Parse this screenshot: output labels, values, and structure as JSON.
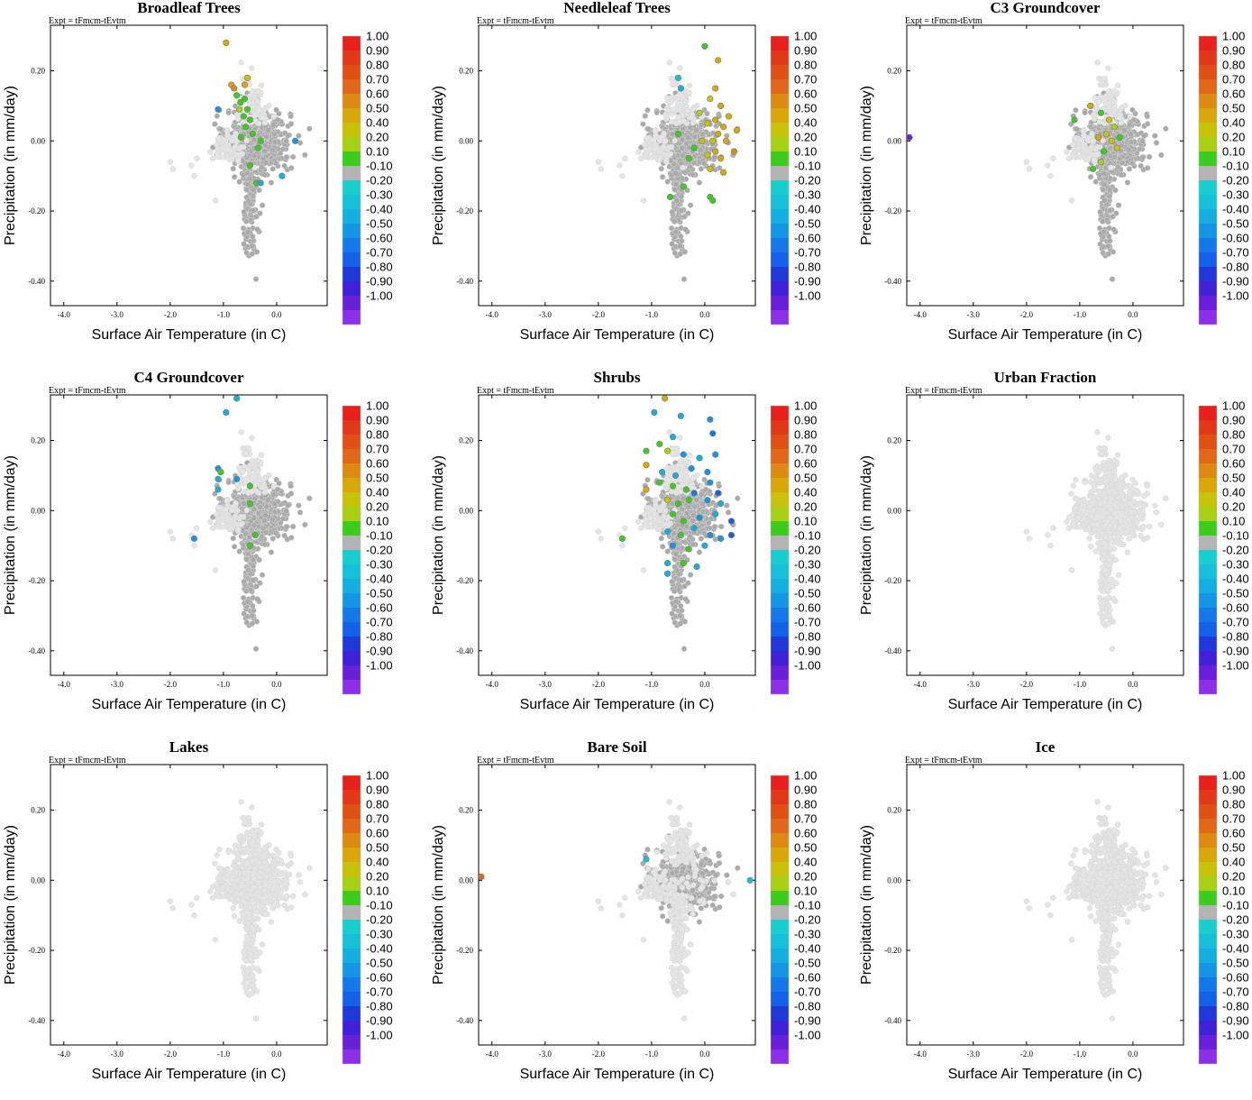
{
  "expt_label": "Expt = tFmcm-tEvtm",
  "xlabel": "Surface Air Temperature (in C)",
  "ylabel": "Precipitation (in mm/day)",
  "colors": {
    "background_points": "#e4e4e4",
    "neutral_points": "#aaaaaa",
    "point_edge": "#d8d8d8"
  },
  "colorbar": {
    "labels": [
      "1.00",
      "0.90",
      "0.80",
      "0.70",
      "0.60",
      "0.50",
      "0.40",
      "0.20",
      "0.10",
      "-0.10",
      "-0.20",
      "-0.30",
      "-0.40",
      "-0.50",
      "-0.60",
      "-0.70",
      "-0.80",
      "-0.90",
      "-1.00"
    ],
    "colors": [
      "#e8201c",
      "#e03818",
      "#e05015",
      "#e06818",
      "#dc8a12",
      "#d8a80a",
      "#c8c20a",
      "#a8d014",
      "#3ccc1e",
      "#b4b4b4",
      "#18cece",
      "#16c0d8",
      "#14aee0",
      "#1496e4",
      "#1478e8",
      "#1460e8",
      "#2038d8",
      "#4020d8",
      "#6820d8",
      "#8c30e8"
    ]
  },
  "chart_data": [
    {
      "type": "scatter",
      "title": "Broadleaf Trees",
      "xlabel": "Surface Air Temperature (in C)",
      "ylabel": "Precipitation (in mm/day)",
      "xlim": [
        -4.25,
        0.95
      ],
      "ylim": [
        -0.47,
        0.33
      ],
      "xticks": [
        "-4.0",
        "-3.0",
        "-2.0",
        "-1.0",
        "0.0"
      ],
      "yticks": [
        "0.20",
        "0.00",
        "-0.20",
        "-0.40"
      ],
      "colorbar_range": [
        -1,
        1
      ],
      "neutral_cloud_extent": "dense",
      "highlight_points": [
        {
          "x": -0.95,
          "y": 0.28,
          "v": 0.5
        },
        {
          "x": -0.85,
          "y": 0.16,
          "v": 0.45
        },
        {
          "x": -0.8,
          "y": 0.15,
          "v": 0.6
        },
        {
          "x": -0.55,
          "y": 0.18,
          "v": 0.3
        },
        {
          "x": -0.6,
          "y": 0.16,
          "v": 0.4
        },
        {
          "x": -0.75,
          "y": 0.13,
          "v": 0.2
        },
        {
          "x": -0.68,
          "y": 0.11,
          "v": 0.2
        },
        {
          "x": -0.6,
          "y": 0.12,
          "v": 0.15
        },
        {
          "x": -0.55,
          "y": 0.09,
          "v": 0.2
        },
        {
          "x": -0.7,
          "y": 0.09,
          "v": 0.25
        },
        {
          "x": -0.5,
          "y": 0.06,
          "v": 0.12
        },
        {
          "x": -0.62,
          "y": 0.07,
          "v": 0.15
        },
        {
          "x": -0.58,
          "y": 0.04,
          "v": 0.2
        },
        {
          "x": -0.67,
          "y": 0.01,
          "v": 0.15
        },
        {
          "x": -0.45,
          "y": 0.02,
          "v": 0.2
        },
        {
          "x": -0.35,
          "y": -0.02,
          "v": 0.2
        },
        {
          "x": -0.3,
          "y": 0.0,
          "v": 0.12
        },
        {
          "x": -0.5,
          "y": -0.07,
          "v": 0.15
        },
        {
          "x": -0.38,
          "y": -0.12,
          "v": 0.15
        },
        {
          "x": -0.3,
          "y": -0.12,
          "v": -0.25
        },
        {
          "x": 0.1,
          "y": -0.1,
          "v": -0.25
        },
        {
          "x": -1.1,
          "y": 0.09,
          "v": -0.35
        },
        {
          "x": 0.35,
          "y": 0.0,
          "v": -0.3
        }
      ]
    },
    {
      "type": "scatter",
      "title": "Needleleaf Trees",
      "xlabel": "Surface Air Temperature (in C)",
      "ylabel": "Precipitation (in mm/day)",
      "xlim": [
        -4.25,
        0.95
      ],
      "ylim": [
        -0.47,
        0.33
      ],
      "xticks": [
        "-4.0",
        "-3.0",
        "-2.0",
        "-1.0",
        "0.0"
      ],
      "yticks": [
        "0.20",
        "0.00",
        "-0.20",
        "-0.40"
      ],
      "colorbar_range": [
        -1,
        1
      ],
      "neutral_cloud_extent": "dense",
      "highlight_points": [
        {
          "x": 0.0,
          "y": 0.27,
          "v": 0.2
        },
        {
          "x": 0.25,
          "y": 0.23,
          "v": 0.45
        },
        {
          "x": 0.2,
          "y": 0.15,
          "v": 0.45
        },
        {
          "x": 0.1,
          "y": 0.12,
          "v": 0.35
        },
        {
          "x": 0.3,
          "y": 0.1,
          "v": 0.4
        },
        {
          "x": -0.1,
          "y": 0.08,
          "v": 0.25
        },
        {
          "x": 0.05,
          "y": 0.05,
          "v": 0.3
        },
        {
          "x": 0.2,
          "y": 0.06,
          "v": 0.45
        },
        {
          "x": 0.35,
          "y": 0.04,
          "v": 0.4
        },
        {
          "x": 0.45,
          "y": 0.07,
          "v": 0.5
        },
        {
          "x": -0.05,
          "y": 0.0,
          "v": 0.3
        },
        {
          "x": 0.15,
          "y": 0.0,
          "v": 0.35
        },
        {
          "x": 0.25,
          "y": 0.02,
          "v": 0.4
        },
        {
          "x": 0.4,
          "y": 0.0,
          "v": 0.45
        },
        {
          "x": -0.2,
          "y": -0.02,
          "v": 0.2
        },
        {
          "x": 0.05,
          "y": -0.04,
          "v": 0.35
        },
        {
          "x": 0.3,
          "y": -0.05,
          "v": 0.4
        },
        {
          "x": 0.55,
          "y": -0.03,
          "v": 0.55
        },
        {
          "x": -0.3,
          "y": -0.05,
          "v": 0.2
        },
        {
          "x": 0.1,
          "y": -0.08,
          "v": 0.3
        },
        {
          "x": 0.35,
          "y": -0.09,
          "v": 0.4
        },
        {
          "x": -0.4,
          "y": -0.13,
          "v": 0.2
        },
        {
          "x": -0.65,
          "y": -0.16,
          "v": 0.15
        },
        {
          "x": 0.1,
          "y": -0.16,
          "v": 0.2
        },
        {
          "x": 0.15,
          "y": -0.17,
          "v": 0.2
        },
        {
          "x": -0.5,
          "y": 0.18,
          "v": -0.2
        },
        {
          "x": -0.45,
          "y": 0.15,
          "v": -0.25
        },
        {
          "x": -0.5,
          "y": 0.02,
          "v": 0.15
        },
        {
          "x": 0.6,
          "y": 0.03,
          "v": 0.5
        },
        {
          "x": 0.2,
          "y": -0.03,
          "v": 0.45
        }
      ]
    },
    {
      "type": "scatter",
      "title": "C3 Groundcover",
      "xlabel": "Surface Air Temperature (in C)",
      "ylabel": "Precipitation (in mm/day)",
      "xlim": [
        -4.25,
        0.95
      ],
      "ylim": [
        -0.47,
        0.33
      ],
      "xticks": [
        "-4.0",
        "-3.0",
        "-2.0",
        "-1.0",
        "0.0"
      ],
      "yticks": [
        "0.20",
        "0.00",
        "-0.20",
        "-0.40"
      ],
      "colorbar_range": [
        -1,
        1
      ],
      "neutral_cloud_extent": "dense",
      "highlight_points": [
        {
          "x": -4.2,
          "y": 0.01,
          "v": -0.9
        },
        {
          "x": -0.8,
          "y": 0.1,
          "v": 0.4
        },
        {
          "x": -1.1,
          "y": 0.06,
          "v": 0.2
        },
        {
          "x": -0.6,
          "y": 0.08,
          "v": 0.2
        },
        {
          "x": -0.45,
          "y": 0.06,
          "v": 0.3
        },
        {
          "x": -0.35,
          "y": 0.04,
          "v": 0.25
        },
        {
          "x": -0.5,
          "y": 0.02,
          "v": 0.35
        },
        {
          "x": -0.65,
          "y": 0.01,
          "v": 0.4
        },
        {
          "x": -0.4,
          "y": 0.0,
          "v": 0.3
        },
        {
          "x": -0.25,
          "y": 0.01,
          "v": 0.2
        },
        {
          "x": -0.55,
          "y": -0.03,
          "v": 0.2
        },
        {
          "x": -0.6,
          "y": -0.06,
          "v": 0.25
        },
        {
          "x": -0.75,
          "y": -0.08,
          "v": 0.15
        },
        {
          "x": -0.3,
          "y": -0.02,
          "v": 0.3
        }
      ]
    },
    {
      "type": "scatter",
      "title": "C4 Groundcover",
      "xlabel": "Surface Air Temperature (in C)",
      "ylabel": "Precipitation (in mm/day)",
      "xlim": [
        -4.25,
        0.95
      ],
      "ylim": [
        -0.47,
        0.33
      ],
      "xticks": [
        "-4.0",
        "-3.0",
        "-2.0",
        "-1.0",
        "0.0"
      ],
      "yticks": [
        "0.20",
        "0.00",
        "-0.20",
        "-0.40"
      ],
      "colorbar_range": [
        -1,
        1
      ],
      "neutral_cloud_extent": "dense",
      "highlight_points": [
        {
          "x": -0.75,
          "y": 0.32,
          "v": -0.25
        },
        {
          "x": -0.95,
          "y": 0.28,
          "v": -0.25
        },
        {
          "x": -1.1,
          "y": 0.12,
          "v": -0.3
        },
        {
          "x": -1.05,
          "y": 0.11,
          "v": 0.15
        },
        {
          "x": -1.1,
          "y": 0.09,
          "v": -0.25
        },
        {
          "x": -1.1,
          "y": 0.06,
          "v": -0.25
        },
        {
          "x": -0.75,
          "y": 0.09,
          "v": -0.3
        },
        {
          "x": -0.5,
          "y": 0.07,
          "v": 0.15
        },
        {
          "x": -0.5,
          "y": 0.02,
          "v": 0.2
        },
        {
          "x": -0.4,
          "y": -0.07,
          "v": 0.15
        },
        {
          "x": -0.5,
          "y": -0.1,
          "v": 0.15
        },
        {
          "x": -1.55,
          "y": -0.08,
          "v": -0.3
        }
      ]
    },
    {
      "type": "scatter",
      "title": "Shrubs",
      "xlabel": "Surface Air Temperature (in C)",
      "ylabel": "Precipitation (in mm/day)",
      "xlim": [
        -4.25,
        0.95
      ],
      "ylim": [
        -0.47,
        0.33
      ],
      "xticks": [
        "-4.0",
        "-3.0",
        "-2.0",
        "-1.0",
        "0.0"
      ],
      "yticks": [
        "0.20",
        "0.00",
        "-0.20",
        "-0.40"
      ],
      "colorbar_range": [
        -1,
        1
      ],
      "neutral_cloud_extent": "dense",
      "highlight_points": [
        {
          "x": -0.75,
          "y": 0.32,
          "v": 0.45
        },
        {
          "x": -0.95,
          "y": 0.28,
          "v": -0.25
        },
        {
          "x": -0.45,
          "y": 0.27,
          "v": -0.25
        },
        {
          "x": 0.1,
          "y": 0.26,
          "v": -0.3
        },
        {
          "x": -0.85,
          "y": 0.19,
          "v": 0.2
        },
        {
          "x": -0.6,
          "y": 0.21,
          "v": -0.25
        },
        {
          "x": 0.15,
          "y": 0.22,
          "v": -0.45
        },
        {
          "x": -1.1,
          "y": 0.17,
          "v": 0.15
        },
        {
          "x": -0.7,
          "y": 0.17,
          "v": 0.25
        },
        {
          "x": -0.4,
          "y": 0.16,
          "v": -0.3
        },
        {
          "x": -0.1,
          "y": 0.15,
          "v": -0.25
        },
        {
          "x": 0.2,
          "y": 0.16,
          "v": -0.3
        },
        {
          "x": -1.1,
          "y": 0.13,
          "v": 0.45
        },
        {
          "x": -0.8,
          "y": 0.11,
          "v": -0.25
        },
        {
          "x": -0.55,
          "y": 0.1,
          "v": -0.25
        },
        {
          "x": -0.25,
          "y": 0.12,
          "v": -0.3
        },
        {
          "x": 0.05,
          "y": 0.11,
          "v": -0.3
        },
        {
          "x": -1.1,
          "y": 0.06,
          "v": 0.45
        },
        {
          "x": -0.85,
          "y": 0.08,
          "v": 0.2
        },
        {
          "x": -0.6,
          "y": 0.07,
          "v": 0.15
        },
        {
          "x": -0.35,
          "y": 0.06,
          "v": 0.2
        },
        {
          "x": -0.2,
          "y": 0.05,
          "v": -0.45
        },
        {
          "x": 0.1,
          "y": 0.08,
          "v": -0.3
        },
        {
          "x": 0.25,
          "y": 0.05,
          "v": -0.55
        },
        {
          "x": -0.7,
          "y": 0.03,
          "v": 0.3
        },
        {
          "x": -0.5,
          "y": 0.02,
          "v": 0.15
        },
        {
          "x": -0.3,
          "y": 0.03,
          "v": 0.2
        },
        {
          "x": 0.05,
          "y": 0.03,
          "v": -0.3
        },
        {
          "x": 0.3,
          "y": 0.02,
          "v": -0.25
        },
        {
          "x": -0.6,
          "y": -0.01,
          "v": 0.2
        },
        {
          "x": -0.4,
          "y": -0.03,
          "v": 0.2
        },
        {
          "x": -0.1,
          "y": -0.02,
          "v": -0.3
        },
        {
          "x": 0.2,
          "y": -0.01,
          "v": -0.25
        },
        {
          "x": 0.5,
          "y": -0.03,
          "v": -0.5
        },
        {
          "x": -0.7,
          "y": -0.06,
          "v": -0.25
        },
        {
          "x": -0.45,
          "y": -0.07,
          "v": 0.15
        },
        {
          "x": -0.2,
          "y": -0.05,
          "v": -0.25
        },
        {
          "x": 0.1,
          "y": -0.07,
          "v": -0.3
        },
        {
          "x": 0.3,
          "y": -0.08,
          "v": -0.3
        },
        {
          "x": 0.5,
          "y": -0.07,
          "v": -0.55
        },
        {
          "x": -0.6,
          "y": -0.1,
          "v": -0.3
        },
        {
          "x": -0.3,
          "y": -0.11,
          "v": 0.2
        },
        {
          "x": 0.0,
          "y": -0.1,
          "v": -0.25
        },
        {
          "x": -0.7,
          "y": -0.15,
          "v": -0.25
        },
        {
          "x": -0.4,
          "y": -0.15,
          "v": 0.15
        },
        {
          "x": -0.15,
          "y": -0.16,
          "v": -0.25
        },
        {
          "x": -1.55,
          "y": -0.08,
          "v": 0.15
        },
        {
          "x": -0.7,
          "y": -0.18,
          "v": -0.25
        }
      ]
    },
    {
      "type": "scatter",
      "title": "Urban Fraction",
      "xlabel": "Surface Air Temperature (in C)",
      "ylabel": "Precipitation (in mm/day)",
      "xlim": [
        -4.25,
        0.95
      ],
      "ylim": [
        -0.47,
        0.33
      ],
      "xticks": [
        "-4.0",
        "-3.0",
        "-2.0",
        "-1.0",
        "0.0"
      ],
      "yticks": [
        "0.20",
        "0.00",
        "-0.20",
        "-0.40"
      ],
      "colorbar_range": [
        -1,
        1
      ],
      "neutral_cloud_extent": "none",
      "highlight_points": []
    },
    {
      "type": "scatter",
      "title": "Lakes",
      "xlabel": "Surface Air Temperature (in C)",
      "ylabel": "Precipitation (in mm/day)",
      "xlim": [
        -4.25,
        0.95
      ],
      "ylim": [
        -0.47,
        0.33
      ],
      "xticks": [
        "-4.0",
        "-3.0",
        "-2.0",
        "-1.0",
        "0.0"
      ],
      "yticks": [
        "0.20",
        "0.00",
        "-0.20",
        "-0.40"
      ],
      "colorbar_range": [
        -1,
        1
      ],
      "neutral_cloud_extent": "none",
      "highlight_points": []
    },
    {
      "type": "scatter",
      "title": "Bare Soil",
      "xlabel": "Surface Air Temperature (in C)",
      "ylabel": "Precipitation (in mm/day)",
      "xlim": [
        -4.25,
        0.95
      ],
      "ylim": [
        -0.47,
        0.33
      ],
      "xticks": [
        "-4.0",
        "-3.0",
        "-2.0",
        "-1.0",
        "0.0"
      ],
      "yticks": [
        "0.20",
        "0.00",
        "-0.20",
        "-0.40"
      ],
      "colorbar_range": [
        -1,
        1
      ],
      "neutral_cloud_extent": "partial",
      "highlight_points": [
        {
          "x": -4.2,
          "y": 0.01,
          "v": 0.7
        },
        {
          "x": -1.1,
          "y": 0.06,
          "v": -0.2
        },
        {
          "x": 0.85,
          "y": 0.0,
          "v": -0.1
        }
      ]
    },
    {
      "type": "scatter",
      "title": "Ice",
      "xlabel": "Surface Air Temperature (in C)",
      "ylabel": "Precipitation (in mm/day)",
      "xlim": [
        -4.25,
        0.95
      ],
      "ylim": [
        -0.47,
        0.33
      ],
      "xticks": [
        "-4.0",
        "-3.0",
        "-2.0",
        "-1.0",
        "0.0"
      ],
      "yticks": [
        "0.20",
        "0.00",
        "-0.20",
        "-0.40"
      ],
      "colorbar_range": [
        -1,
        1
      ],
      "neutral_cloud_extent": "none",
      "highlight_points": []
    }
  ]
}
